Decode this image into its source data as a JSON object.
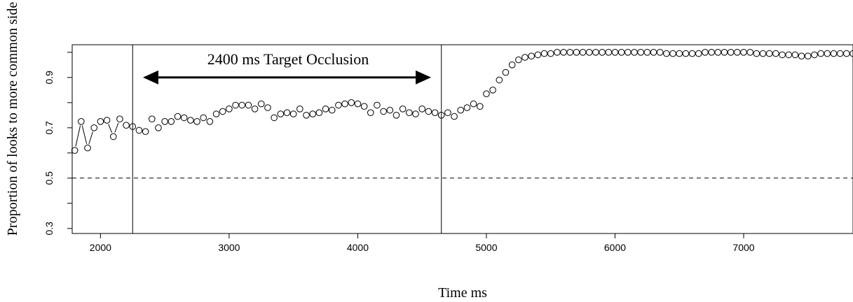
{
  "chart_data": {
    "type": "scatter",
    "title": "",
    "xlabel": "Time ms",
    "ylabel": "Proportion of looks to more common side",
    "xlim": [
      1780,
      7850
    ],
    "ylim": [
      0.28,
      1.03
    ],
    "x_ticks": [
      2000,
      3000,
      4000,
      5000,
      6000,
      7000
    ],
    "y_ticks": [
      0.3,
      0.5,
      0.7,
      0.9
    ],
    "x_tick_labels": [
      "2000",
      "3000",
      "4000",
      "5000",
      "6000",
      "7000"
    ],
    "y_tick_labels": [
      "0.3",
      "0.5",
      "0.7",
      "0.9"
    ],
    "grid": false,
    "reference_line": {
      "y": 0.5,
      "style": "dashed"
    },
    "vertical_lines": [
      2250,
      4650
    ],
    "annotation": {
      "text": "2400 ms Target Occlusion",
      "x_start": 2330,
      "x_end": 4570,
      "y": 0.9
    },
    "connector_segments": [
      [
        1800,
        1850
      ],
      [
        1850,
        1900
      ],
      [
        1900,
        1950
      ],
      [
        2050,
        2100
      ],
      [
        2100,
        2150
      ]
    ],
    "series": [
      {
        "x": [
          1800,
          1850,
          1900,
          1950,
          2000,
          2050,
          2100,
          2150,
          2200,
          2250,
          2300,
          2350,
          2400,
          2450,
          2500,
          2550,
          2600,
          2650,
          2700,
          2750,
          2800,
          2850,
          2900,
          2950,
          3000,
          3050,
          3100,
          3150,
          3200,
          3250,
          3300,
          3350,
          3400,
          3450,
          3500,
          3550,
          3600,
          3650,
          3700,
          3750,
          3800,
          3850,
          3900,
          3950,
          4000,
          4050,
          4100,
          4150,
          4200,
          4250,
          4300,
          4350,
          4400,
          4450,
          4500,
          4550,
          4600,
          4650,
          4700,
          4750,
          4800,
          4850,
          4900,
          4950,
          5000,
          5050,
          5100,
          5150,
          5200,
          5250,
          5300,
          5350,
          5400,
          5450,
          5500,
          5550,
          5600,
          5650,
          5700,
          5750,
          5800,
          5850,
          5900,
          5950,
          6000,
          6050,
          6100,
          6150,
          6200,
          6250,
          6300,
          6350,
          6400,
          6450,
          6500,
          6550,
          6600,
          6650,
          6700,
          6750,
          6800,
          6850,
          6900,
          6950,
          7000,
          7050,
          7100,
          7150,
          7200,
          7250,
          7300,
          7350,
          7400,
          7450,
          7500,
          7550,
          7600,
          7650,
          7700,
          7750,
          7800,
          7850
        ],
        "y": [
          0.61,
          0.725,
          0.62,
          0.7,
          0.725,
          0.73,
          0.665,
          0.735,
          0.71,
          0.705,
          0.69,
          0.685,
          0.735,
          0.7,
          0.725,
          0.725,
          0.745,
          0.74,
          0.73,
          0.725,
          0.74,
          0.725,
          0.755,
          0.765,
          0.775,
          0.79,
          0.79,
          0.79,
          0.775,
          0.795,
          0.78,
          0.74,
          0.755,
          0.76,
          0.755,
          0.775,
          0.75,
          0.755,
          0.76,
          0.775,
          0.77,
          0.79,
          0.795,
          0.8,
          0.795,
          0.785,
          0.76,
          0.79,
          0.765,
          0.77,
          0.75,
          0.775,
          0.76,
          0.755,
          0.775,
          0.765,
          0.76,
          0.75,
          0.76,
          0.745,
          0.77,
          0.78,
          0.795,
          0.785,
          0.835,
          0.85,
          0.89,
          0.92,
          0.95,
          0.97,
          0.98,
          0.985,
          0.99,
          0.995,
          0.995,
          1.0,
          1.0,
          1.0,
          1.0,
          1.0,
          1.0,
          1.0,
          1.0,
          1.0,
          1.0,
          1.0,
          1.0,
          1.0,
          1.0,
          1.0,
          1.0,
          1.0,
          0.995,
          0.995,
          0.995,
          0.995,
          0.995,
          0.995,
          1.0,
          1.0,
          1.0,
          1.0,
          1.0,
          1.0,
          1.0,
          1.0,
          0.995,
          0.995,
          0.995,
          0.995,
          0.99,
          0.99,
          0.99,
          0.985,
          0.985,
          0.99,
          0.995,
          0.995,
          0.995,
          0.995,
          0.995,
          0.995
        ]
      }
    ]
  }
}
